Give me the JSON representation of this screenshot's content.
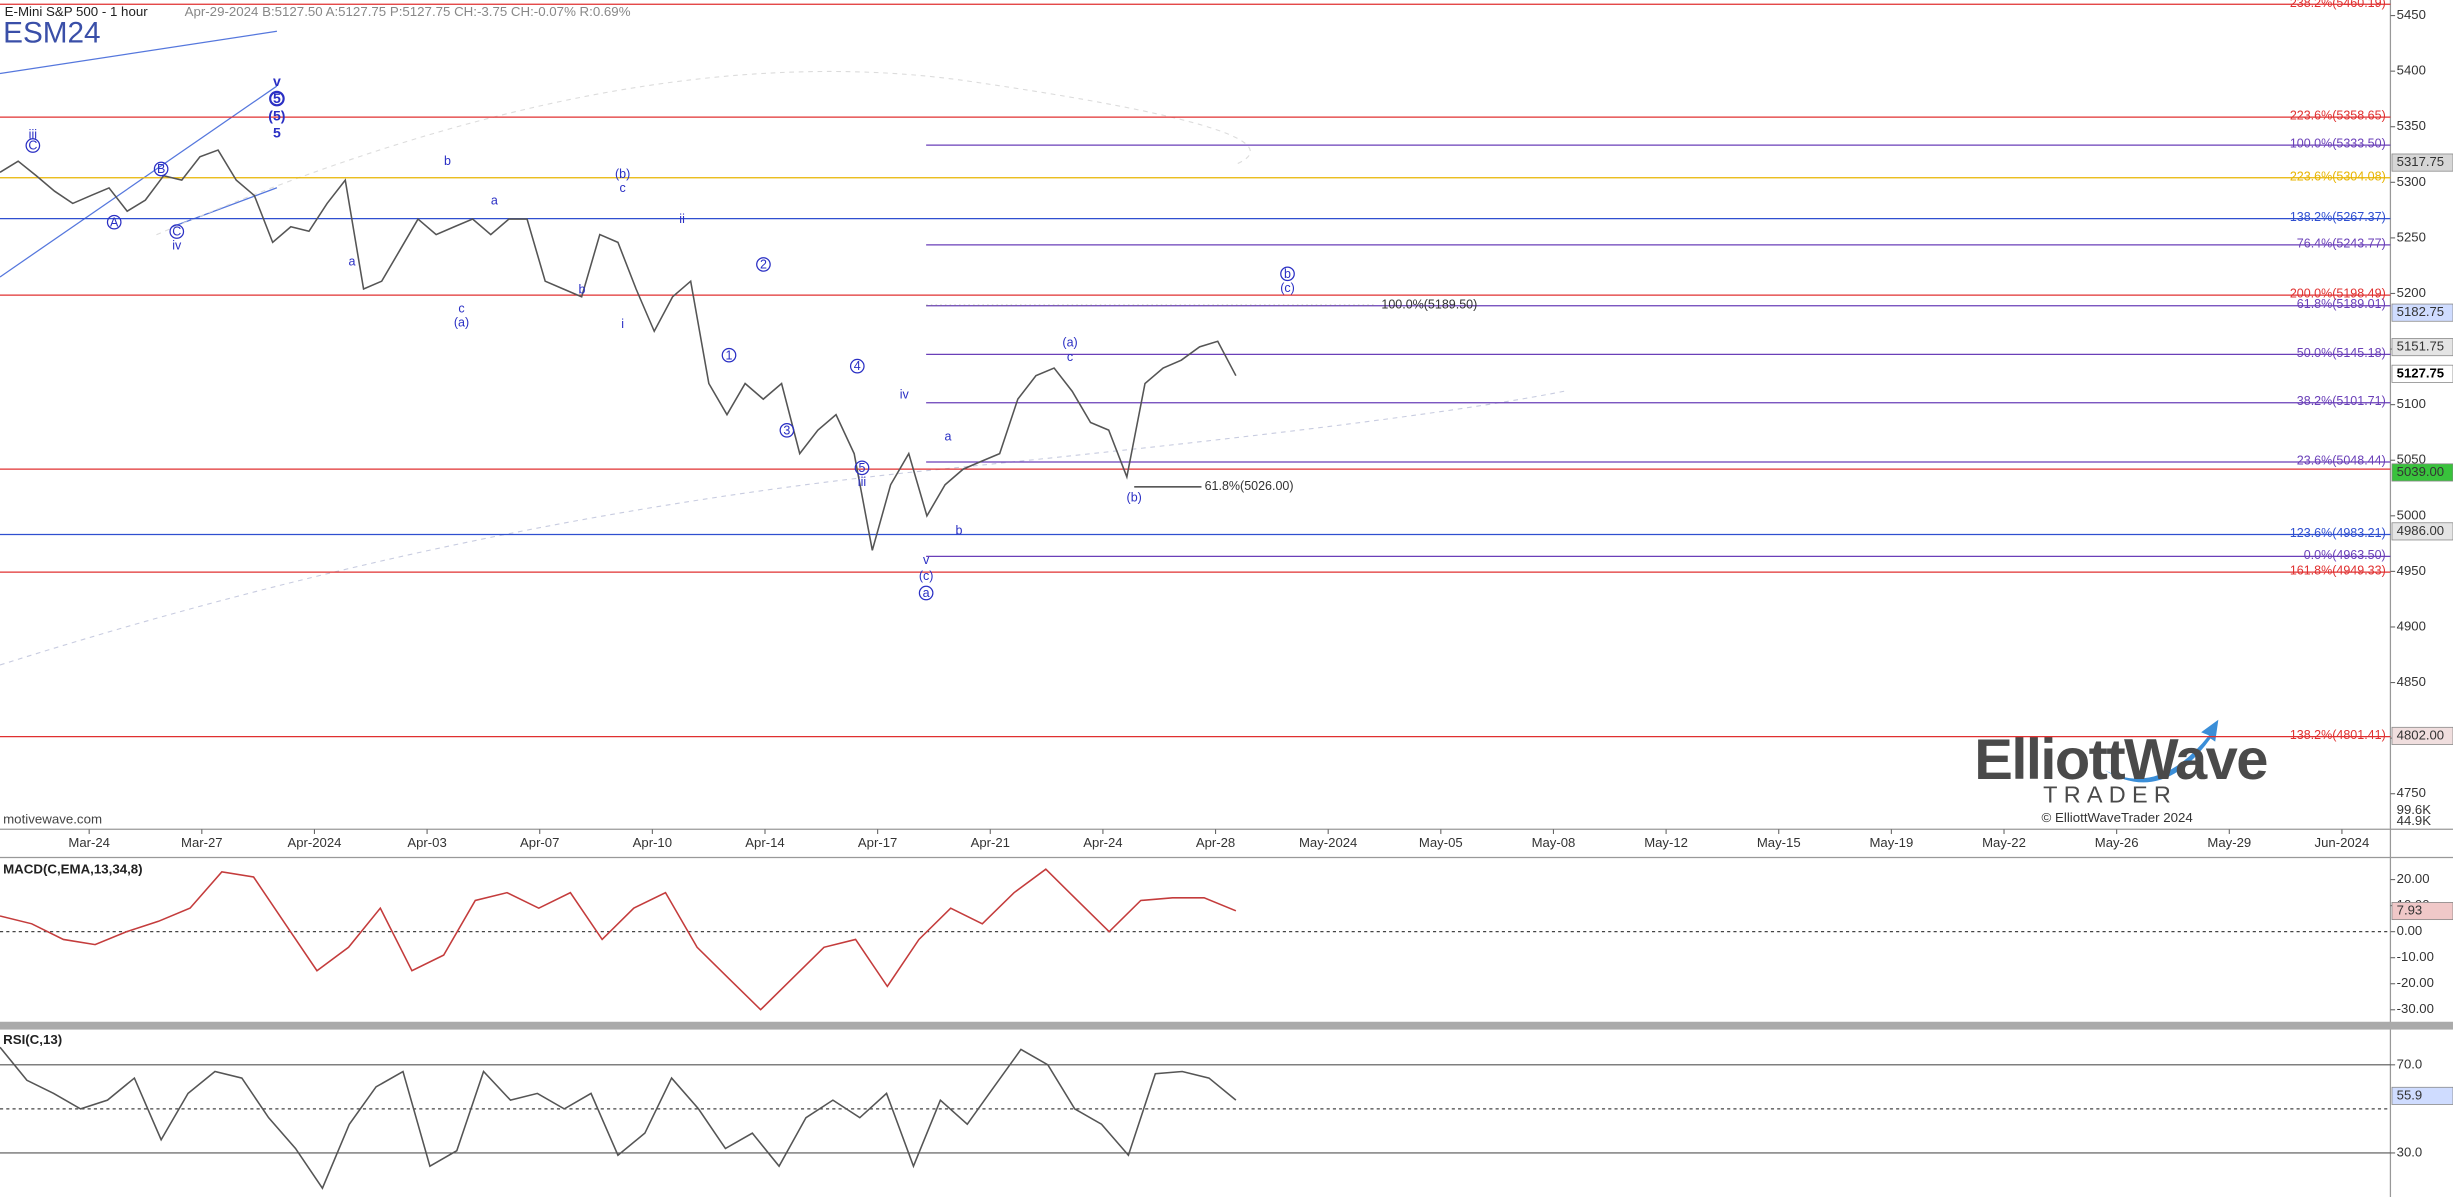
{
  "header": {
    "instrument": "E-Mini S&P 500 - 1 hour",
    "quote": "Apr-29-2024 B:5127.50 A:5127.75 P:5127.75 CH:-3.75 CH:-0.07% R:0.69%",
    "source": "motivewave.com"
  },
  "logo": {
    "name": "ElliottWave",
    "tagline": "TRADER",
    "copyright": "© ElliottWaveTrader 2024"
  },
  "chart_data": [
    {
      "type": "line",
      "title": "ESM24",
      "color": "#555555",
      "date_labels": [
        "Mar-24",
        "Mar-27",
        "Apr-2024",
        "Apr-03",
        "Apr-07",
        "Apr-10",
        "Apr-14",
        "Apr-17",
        "Apr-21",
        "Apr-24",
        "Apr-28",
        "May-2024",
        "May-05",
        "May-08",
        "May-12",
        "May-15",
        "May-19",
        "May-22",
        "May-26",
        "May-29",
        "Jun-2024"
      ],
      "values": [
        5309,
        5319,
        5306,
        5292,
        5281,
        5288,
        5295,
        5274,
        5284,
        5306,
        5302,
        5323,
        5329,
        5302,
        5288,
        5246,
        5260,
        5256,
        5281,
        5302,
        5204,
        5211,
        5239,
        5267,
        5253,
        5260,
        5267,
        5253,
        5267,
        5267,
        5211,
        5204,
        5197,
        5253,
        5246,
        5204,
        5166,
        5197,
        5211,
        5119,
        5091,
        5119,
        5105,
        5119,
        5056,
        5077,
        5091,
        5056,
        4969,
        5028,
        5056,
        5000,
        5028,
        5042,
        5049,
        5056,
        5105,
        5126,
        5133,
        5112,
        5084,
        5077,
        5035,
        5119,
        5133,
        5140,
        5152,
        5157,
        5126
      ],
      "ylim": [
        4718,
        5464
      ],
      "yticks": [
        4750,
        4800,
        4850,
        4900,
        4950,
        5000,
        5050,
        5100,
        5150,
        5200,
        5250,
        5300,
        5350,
        5400,
        5450
      ],
      "grid": false,
      "levels": [
        {
          "value": 5460.19,
          "label": "238.2%(5460.19)",
          "color": "#e03030"
        },
        {
          "value": 5358.65,
          "label": "223.6%(5358.65)",
          "color": "#e03030"
        },
        {
          "value": 5333.5,
          "label": "100.0%(5333.50)",
          "color": "#6a3fb8"
        },
        {
          "value": 5304.08,
          "label": "223.6%(5304.08)",
          "color": "#e8b400"
        },
        {
          "value": 5267.37,
          "label": "138.2%(5267.37)",
          "color": "#2f4fd0"
        },
        {
          "value": 5243.77,
          "label": "76.4%(5243.77)",
          "color": "#6a3fb8"
        },
        {
          "value": 5198.49,
          "label": "200.0%(5198.49)",
          "color": "#e03030"
        },
        {
          "value": 5189.01,
          "label": "61.8%(5189.01)",
          "color": "#6a3fb8"
        },
        {
          "value": 5145.18,
          "label": "50.0%(5145.18)",
          "color": "#6a3fb8"
        },
        {
          "value": 5101.71,
          "label": "38.2%(5101.71)",
          "color": "#6a3fb8"
        },
        {
          "value": 5048.44,
          "label": "23.6%(5048.44)",
          "color": "#6a3fb8"
        },
        {
          "value": 5042,
          "color": "#e03030"
        },
        {
          "value": 4983.21,
          "label": "123.6%(4983.21)",
          "color": "#2f4fd0"
        },
        {
          "value": 4963.5,
          "label": "0.0%(4963.50)",
          "color": "#6a3fb8"
        },
        {
          "value": 4949.33,
          "label": "161.8%(4949.33)",
          "color": "#e03030"
        },
        {
          "value": 4801.41,
          "label": "138.2%(4801.41)",
          "color": "#e03030"
        }
      ],
      "price_tags": [
        {
          "value": 5317.75,
          "label": "5317.75",
          "color": "#d6d6d6"
        },
        {
          "value": 5182.75,
          "label": "5182.75",
          "color": "#cfdcff"
        },
        {
          "value": 5151.75,
          "label": "5151.75",
          "color": "#e4e4e4"
        },
        {
          "value": 5127.75,
          "label": "5127.75",
          "color": "#ffffff"
        },
        {
          "value": 5039,
          "label": "5039.00",
          "color": "#39c23c"
        },
        {
          "value": 4986,
          "label": "4986.00",
          "color": "#e4e4e4"
        },
        {
          "value": 4802,
          "label": "4802.00",
          "color": "#f0dede"
        }
      ],
      "annotations": [
        {
          "value": 5189.5,
          "label": "100.0%(5189.50)"
        },
        {
          "value": 5026,
          "label": "61.8%(5026.00)"
        }
      ],
      "volume_tags": [
        "99.6K",
        "44.9K"
      ],
      "wave_labels": [
        "v",
        "5",
        "(5)",
        "5",
        "iii",
        "C",
        "B",
        "A",
        "C",
        "iv",
        "a",
        "b",
        "c",
        "(a)",
        "a",
        "b",
        "(b)",
        "c",
        "i",
        "ii",
        "1",
        "2",
        "3",
        "4",
        "5",
        "iii",
        "iv",
        "a",
        "b",
        "v",
        "(c)",
        "a",
        "(a)",
        "c",
        "(b)",
        "b",
        "(c)"
      ]
    },
    {
      "type": "line",
      "title": "MACD(C,EMA,13,34,8)",
      "color": "#c43c3c",
      "values": [
        6,
        3,
        -3,
        -5,
        0,
        4,
        9,
        23,
        21,
        3,
        -15,
        -6,
        9,
        -15,
        -9,
        12,
        15,
        9,
        15,
        -3,
        9,
        15,
        -6,
        -18,
        -30,
        -18,
        -6,
        -3,
        -21,
        -3,
        9,
        3,
        15,
        24,
        12,
        0,
        12,
        13,
        13,
        8
      ],
      "ylim": [
        -34,
        28.5
      ],
      "yticks": [
        {
          "value": -30,
          "label": "-30.00"
        },
        {
          "value": -20,
          "label": "-20.00"
        },
        {
          "value": -10,
          "label": "-10.00"
        },
        {
          "value": 0,
          "label": "0.00"
        },
        {
          "value": 10,
          "label": "10.00"
        },
        {
          "value": 20,
          "label": "20.00"
        }
      ],
      "grid": false,
      "baseline": 0,
      "price_tags": [
        {
          "value": 7.93,
          "label": "7.93",
          "color": "#f0c8c8"
        }
      ]
    },
    {
      "type": "line",
      "title": "RSI(C,13)",
      "color": "#555555",
      "values": [
        78,
        63,
        57,
        50,
        54,
        64,
        36,
        57,
        67,
        64,
        46,
        32,
        14,
        43,
        60,
        67,
        24,
        31,
        67,
        54,
        57,
        50,
        57,
        29,
        39,
        64,
        50,
        32,
        39,
        24,
        46,
        54,
        46,
        57,
        24,
        54,
        43,
        60,
        77,
        70,
        50,
        43,
        29,
        66,
        67,
        64,
        54
      ],
      "ylim": [
        10,
        86
      ],
      "yticks": [
        {
          "value": 30,
          "label": "30.0"
        },
        {
          "value": 70,
          "label": "70.0"
        }
      ],
      "grid": true,
      "baseline": 50,
      "price_tags": [
        {
          "value": 55.9,
          "label": "55.9",
          "color": "#cfdcff"
        }
      ]
    }
  ]
}
